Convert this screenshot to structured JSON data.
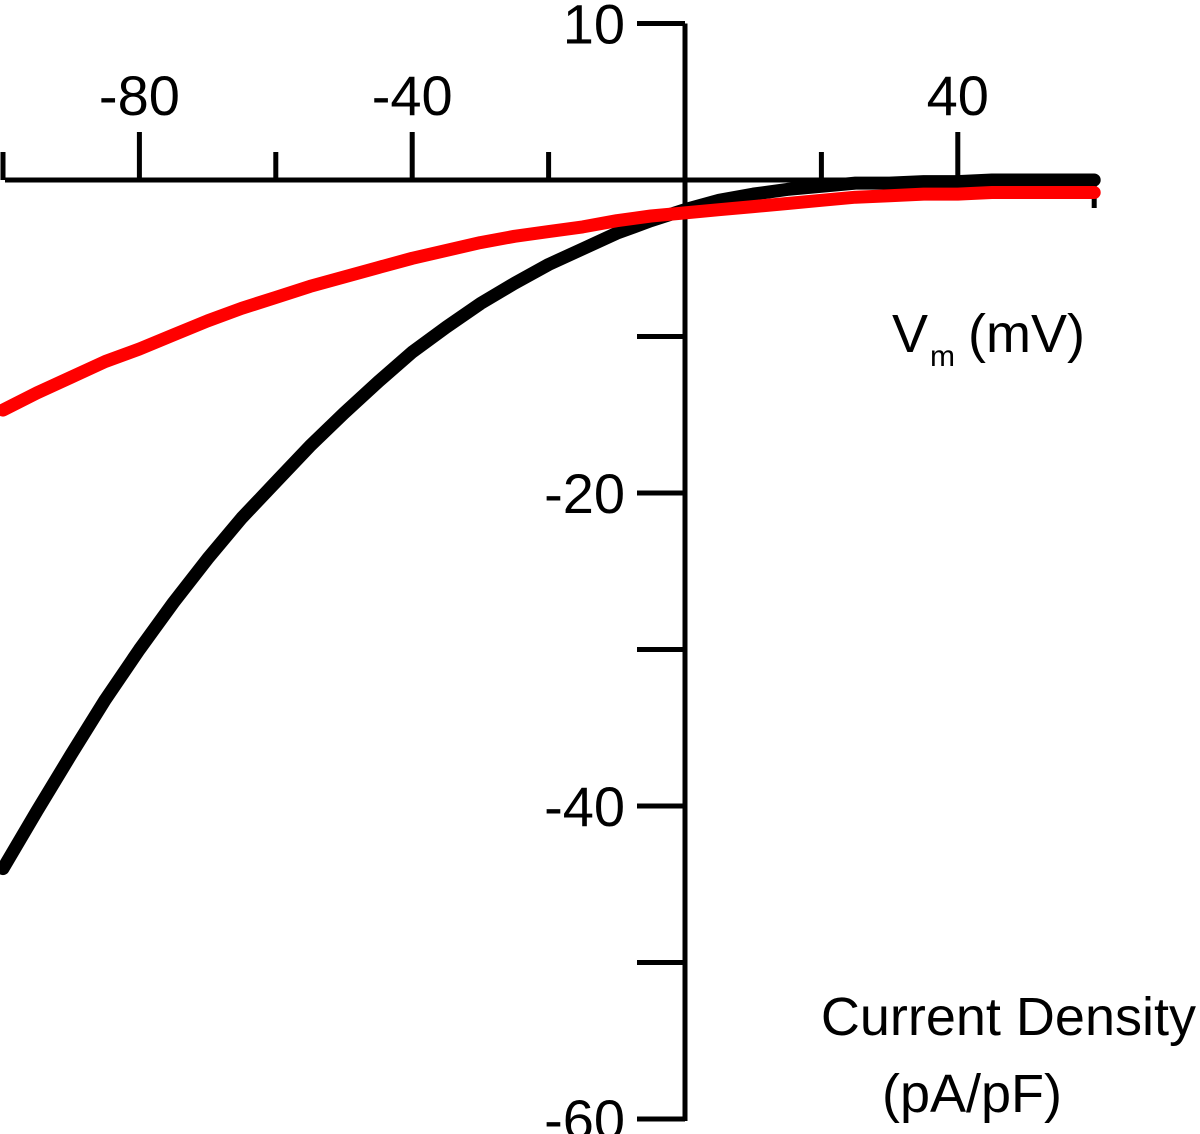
{
  "chart_data": {
    "type": "line",
    "xlabel": {
      "main": "V",
      "sub": "m",
      "unit": "(mV)"
    },
    "ylabel": {
      "line1": "Current Density",
      "line2": "(pA/pF)"
    },
    "xlim": [
      -100,
      60
    ],
    "ylim": [
      -60,
      10
    ],
    "x_ticks_labeled": [
      {
        "value": -80,
        "label": "-80"
      },
      {
        "value": -40,
        "label": "-40"
      },
      {
        "value": 40,
        "label": "40"
      }
    ],
    "x_ticks_minor": [
      -100,
      -60,
      -20,
      0,
      20,
      60
    ],
    "y_ticks_labeled": [
      {
        "value": 10,
        "label": "10"
      },
      {
        "value": -20,
        "label": "-20"
      },
      {
        "value": -40,
        "label": "-40"
      },
      {
        "value": -60,
        "label": "-60"
      }
    ],
    "y_ticks_minor": [
      0,
      -10,
      -30,
      -50
    ],
    "grid": false,
    "series": [
      {
        "color": "#000000",
        "points": [
          [
            -100,
            -44.0
          ],
          [
            -95,
            -40.3
          ],
          [
            -90,
            -36.7
          ],
          [
            -85,
            -33.2
          ],
          [
            -80,
            -30.0
          ],
          [
            -75,
            -27.0
          ],
          [
            -70,
            -24.2
          ],
          [
            -65,
            -21.6
          ],
          [
            -60,
            -19.3
          ],
          [
            -55,
            -17.0
          ],
          [
            -50,
            -14.9
          ],
          [
            -45,
            -12.9
          ],
          [
            -40,
            -11.0
          ],
          [
            -35,
            -9.4
          ],
          [
            -30,
            -7.9
          ],
          [
            -25,
            -6.6
          ],
          [
            -20,
            -5.4
          ],
          [
            -15,
            -4.4
          ],
          [
            -10,
            -3.4
          ],
          [
            -5,
            -2.6
          ],
          [
            0,
            -1.9
          ],
          [
            5,
            -1.3
          ],
          [
            10,
            -0.9
          ],
          [
            15,
            -0.6
          ],
          [
            20,
            -0.4
          ],
          [
            25,
            -0.2
          ],
          [
            30,
            -0.2
          ],
          [
            35,
            -0.1
          ],
          [
            40,
            -0.1
          ],
          [
            45,
            0.0
          ],
          [
            50,
            0.0
          ],
          [
            55,
            0.0
          ],
          [
            60,
            0.0
          ]
        ]
      },
      {
        "color": "#ff0000",
        "points": [
          [
            -100,
            -14.7
          ],
          [
            -95,
            -13.6
          ],
          [
            -90,
            -12.6
          ],
          [
            -85,
            -11.6
          ],
          [
            -80,
            -10.8
          ],
          [
            -75,
            -9.9
          ],
          [
            -70,
            -9.0
          ],
          [
            -65,
            -8.2
          ],
          [
            -60,
            -7.5
          ],
          [
            -55,
            -6.8
          ],
          [
            -50,
            -6.2
          ],
          [
            -45,
            -5.6
          ],
          [
            -40,
            -5.0
          ],
          [
            -35,
            -4.5
          ],
          [
            -30,
            -4.0
          ],
          [
            -25,
            -3.6
          ],
          [
            -20,
            -3.3
          ],
          [
            -15,
            -3.0
          ],
          [
            -10,
            -2.6
          ],
          [
            -5,
            -2.3
          ],
          [
            0,
            -2.1
          ],
          [
            5,
            -1.9
          ],
          [
            10,
            -1.7
          ],
          [
            15,
            -1.5
          ],
          [
            20,
            -1.3
          ],
          [
            25,
            -1.1
          ],
          [
            30,
            -1.0
          ],
          [
            35,
            -0.9
          ],
          [
            40,
            -0.9
          ],
          [
            45,
            -0.8
          ],
          [
            50,
            -0.8
          ],
          [
            55,
            -0.8
          ],
          [
            60,
            -0.8
          ]
        ]
      }
    ]
  }
}
